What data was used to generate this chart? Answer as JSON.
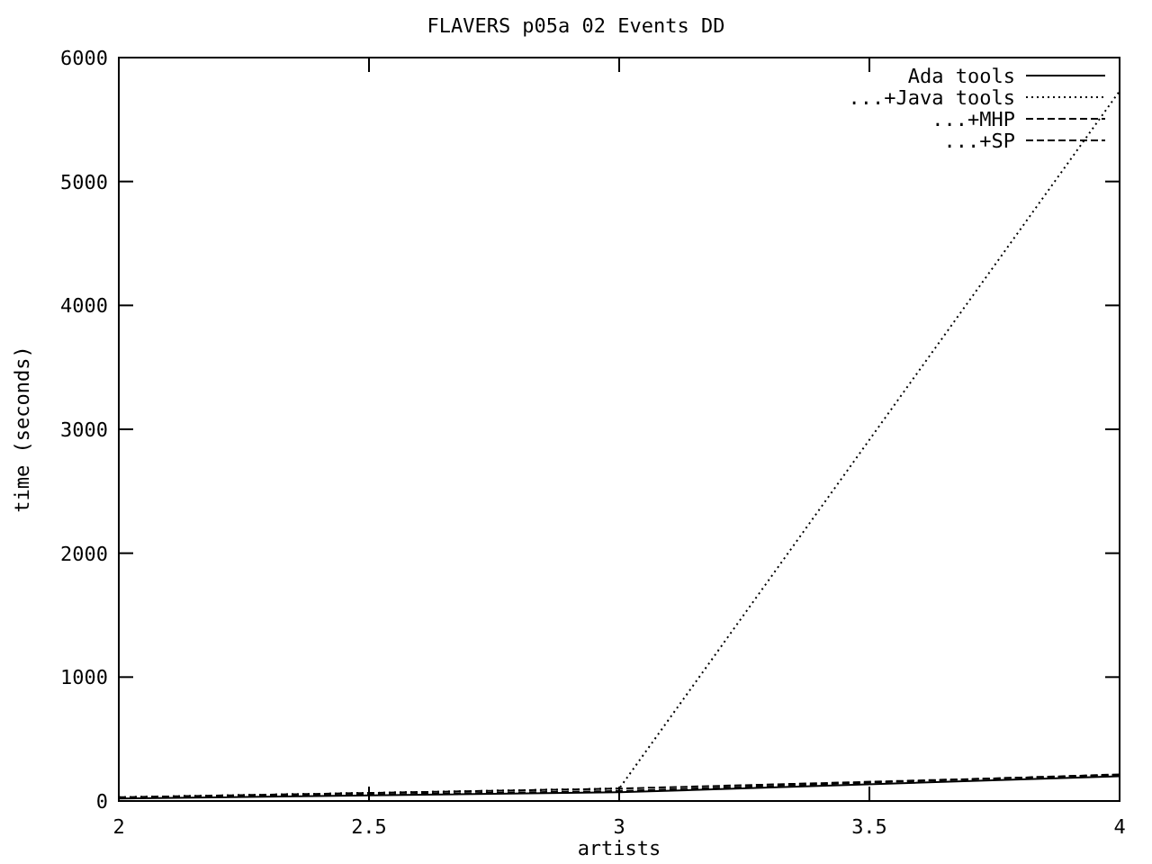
{
  "chart_data": {
    "type": "line",
    "title": "FLAVERS p05a 02 Events DD",
    "xlabel": "artists",
    "ylabel": "time (seconds)",
    "x": [
      2,
      3,
      4
    ],
    "series": [
      {
        "name": "Ada tools",
        "color": "#000000",
        "line_style": "solid",
        "values": [
          20,
          70,
          200
        ]
      },
      {
        "name": "...+Java tools",
        "color": "#000000",
        "line_style": "dotted",
        "values": [
          30,
          100,
          5730
        ]
      },
      {
        "name": "...+MHP",
        "color": "#000000",
        "line_style": "dashed",
        "values": [
          30,
          100,
          210
        ]
      },
      {
        "name": "...+SP",
        "color": "#000000",
        "line_style": "dashed",
        "values": [
          25,
          80,
          215
        ]
      }
    ],
    "xlim": [
      2,
      4
    ],
    "xticks": [
      2,
      2.5,
      3,
      3.5,
      4
    ],
    "ylim": [
      0,
      6000
    ],
    "yticks": [
      0,
      1000,
      2000,
      3000,
      4000,
      5000,
      6000
    ],
    "legend": "top right",
    "marker": "none"
  }
}
